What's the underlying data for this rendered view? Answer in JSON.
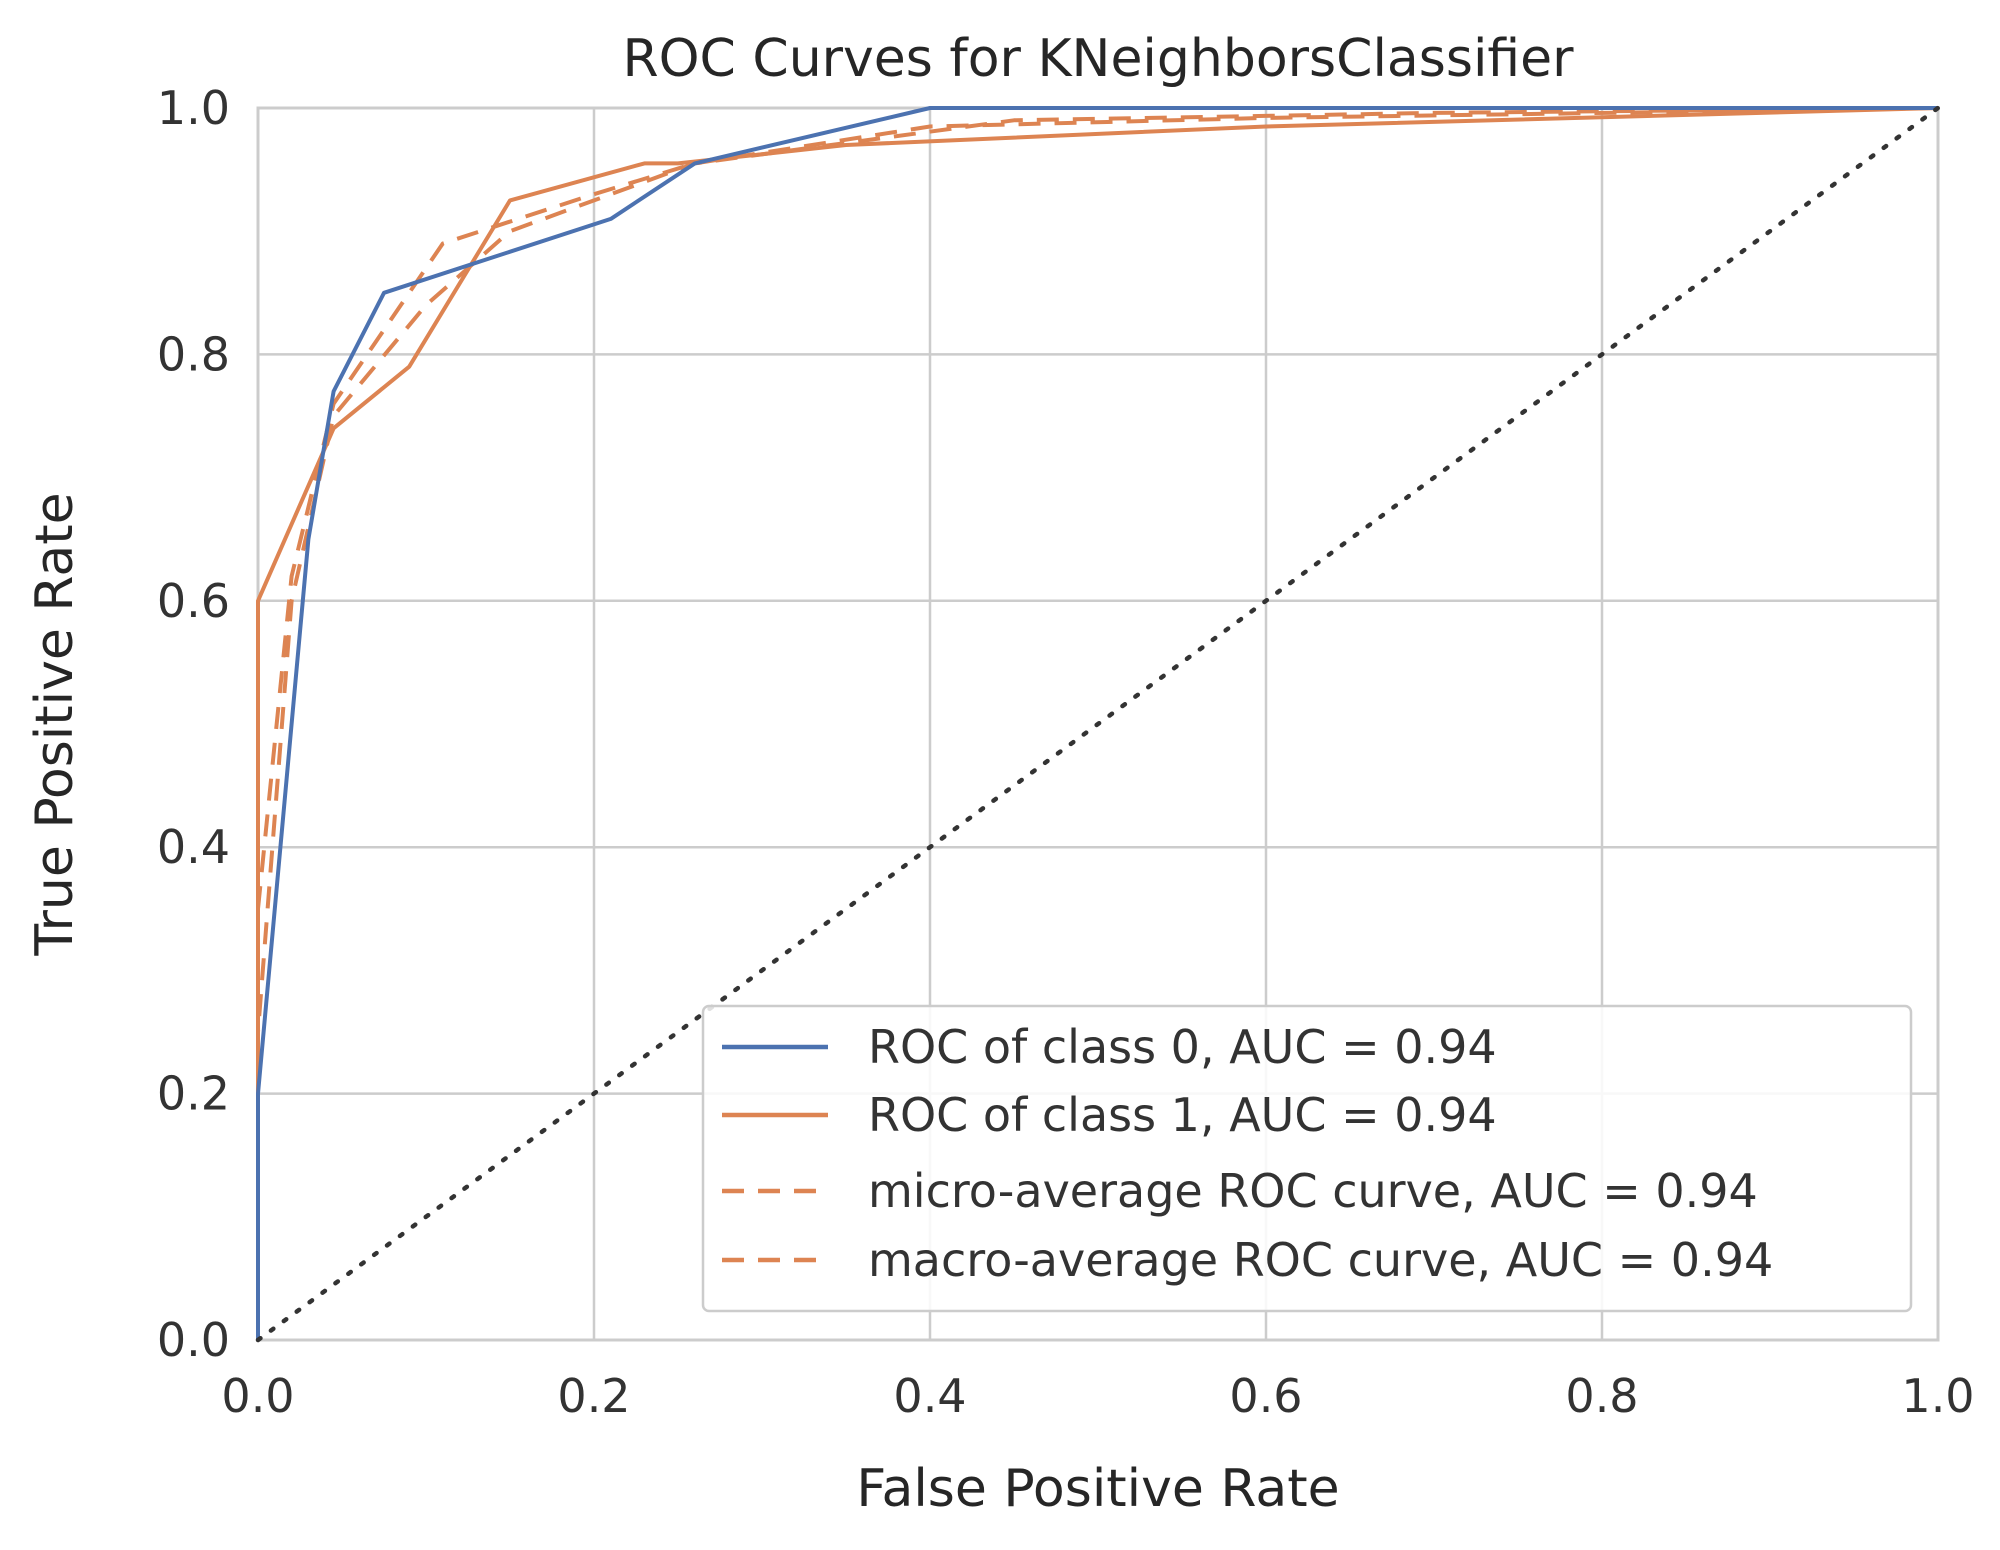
{
  "chart_data": {
    "type": "line",
    "title": "ROC Curves for KNeighborsClassifier",
    "xlabel": "False Positive Rate",
    "ylabel": "True Positive Rate",
    "xlim": [
      0,
      1
    ],
    "ylim": [
      0,
      1
    ],
    "xticks": [
      "0.0",
      "0.2",
      "0.4",
      "0.6",
      "0.8",
      "1.0"
    ],
    "yticks": [
      "0.0",
      "0.2",
      "0.4",
      "0.6",
      "0.8",
      "1.0"
    ],
    "grid": true,
    "legend_position": "lower-right",
    "colors": {
      "class0": "#4c72b0",
      "class1": "#dd8452",
      "diagonal": "#333333"
    },
    "series": [
      {
        "name": "ROC of class 0, AUC = 0.94",
        "style": "solid",
        "color": "#4c72b0",
        "x": [
          0.0,
          0.0,
          0.03,
          0.045,
          0.075,
          0.21,
          0.26,
          0.4,
          0.42,
          1.0
        ],
        "y": [
          0.0,
          0.2,
          0.65,
          0.77,
          0.85,
          0.91,
          0.955,
          1.0,
          1.0,
          1.0
        ]
      },
      {
        "name": "ROC of class 1, AUC = 0.94",
        "style": "solid",
        "color": "#dd8452",
        "x": [
          0.0,
          0.0,
          0.045,
          0.09,
          0.15,
          0.23,
          0.25,
          0.35,
          0.6,
          1.0
        ],
        "y": [
          0.0,
          0.6,
          0.74,
          0.79,
          0.925,
          0.955,
          0.955,
          0.97,
          0.985,
          1.0
        ]
      },
      {
        "name": "micro-average ROC curve, AUC = 0.94",
        "style": "dashed",
        "color": "#dd8452",
        "x": [
          0.0,
          0.0,
          0.02,
          0.045,
          0.07,
          0.11,
          0.2,
          0.26,
          0.4,
          0.6,
          1.0
        ],
        "y": [
          0.0,
          0.35,
          0.62,
          0.76,
          0.81,
          0.89,
          0.93,
          0.955,
          0.985,
          0.992,
          1.0
        ]
      },
      {
        "name": "macro-average ROC curve, AUC = 0.94",
        "style": "dashed",
        "color": "#dd8452",
        "x": [
          0.0,
          0.0,
          0.02,
          0.045,
          0.1,
          0.15,
          0.26,
          0.45,
          0.7,
          1.0
        ],
        "y": [
          0.0,
          0.25,
          0.6,
          0.75,
          0.84,
          0.9,
          0.955,
          0.99,
          0.996,
          1.0
        ]
      }
    ],
    "reference_line": {
      "x": [
        0,
        1
      ],
      "y": [
        0,
        1
      ],
      "style": "dotted",
      "color": "#333333"
    }
  }
}
